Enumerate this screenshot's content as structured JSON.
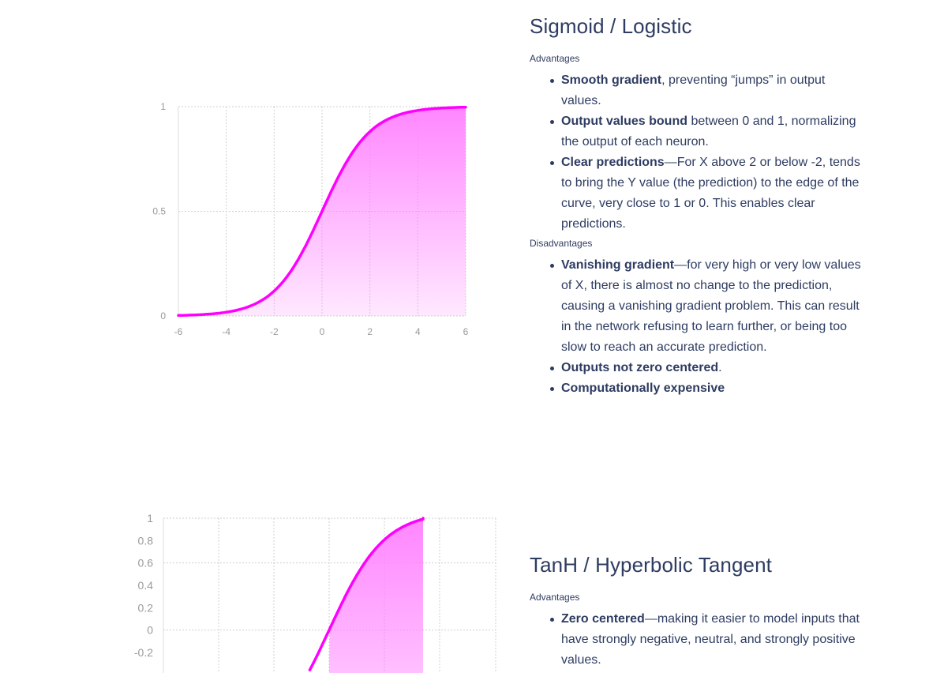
{
  "colors": {
    "text": "#2e3c62",
    "curve": "#ff00ff",
    "fill": "#ff80ff",
    "grid": "#cfcfcf"
  },
  "sections": [
    {
      "title": "Sigmoid / Logistic",
      "advantages_label": "Advantages",
      "advantages": [
        {
          "bold": "Smooth gradient",
          "text": ", preventing “jumps” in output values."
        },
        {
          "bold": "Output values bound",
          "text": " between 0 and 1, normalizing the output of each neuron."
        },
        {
          "bold": "Clear predictions",
          "text": "—For X above 2 or below -2, tends to bring the Y value (the prediction) to the edge of the curve, very close to 1 or 0. This enables clear predictions."
        }
      ],
      "disadvantages_label": "Disadvantages",
      "disadvantages": [
        {
          "bold": "Vanishing gradient",
          "text": "—for very high or very low values of X, there is almost no change to the prediction, causing a vanishing gradient problem. This can result in the network refusing to learn further, or being too slow to reach an accurate prediction."
        },
        {
          "bold": "Outputs not zero centered",
          "text": "."
        },
        {
          "bold": "Computationally expensive",
          "text": ""
        }
      ]
    },
    {
      "title": "TanH / Hyperbolic Tangent",
      "advantages_label": "Advantages",
      "advantages": [
        {
          "bold": "Zero centered",
          "text": "—making it easier to model inputs that have strongly negative, neutral, and strongly positive values."
        }
      ]
    }
  ],
  "chart_data": [
    {
      "type": "area",
      "function": "sigmoid",
      "x_ticks": [
        "-6",
        "-4",
        "-2",
        "0",
        "2",
        "4",
        "6"
      ],
      "y_ticks": [
        "0",
        "0.5",
        "1"
      ],
      "xlim": [
        -6,
        6
      ],
      "ylim": [
        0,
        1
      ],
      "grid": true,
      "x": [
        -6,
        -5,
        -4,
        -3,
        -2,
        -1,
        0,
        1,
        2,
        3,
        4,
        5,
        6
      ],
      "y": [
        0.0025,
        0.0067,
        0.018,
        0.047,
        0.119,
        0.269,
        0.5,
        0.731,
        0.881,
        0.953,
        0.982,
        0.993,
        0.9975
      ]
    },
    {
      "type": "area",
      "function": "tanh",
      "y_ticks": [
        "1",
        "0.8",
        "0.6",
        "0.4",
        "0.2",
        "0",
        "-0.2"
      ],
      "xlim": [
        -4,
        2
      ],
      "ylim": [
        -0.2,
        1
      ],
      "grid": true,
      "x": [
        -0.3,
        -0.2,
        -0.1,
        0,
        0.25,
        0.5,
        0.75,
        1.0,
        1.25,
        1.5,
        1.75
      ],
      "y": [
        -0.291,
        -0.197,
        -0.1,
        0,
        0.245,
        0.462,
        0.635,
        0.762,
        0.848,
        0.905,
        0.941
      ]
    }
  ]
}
